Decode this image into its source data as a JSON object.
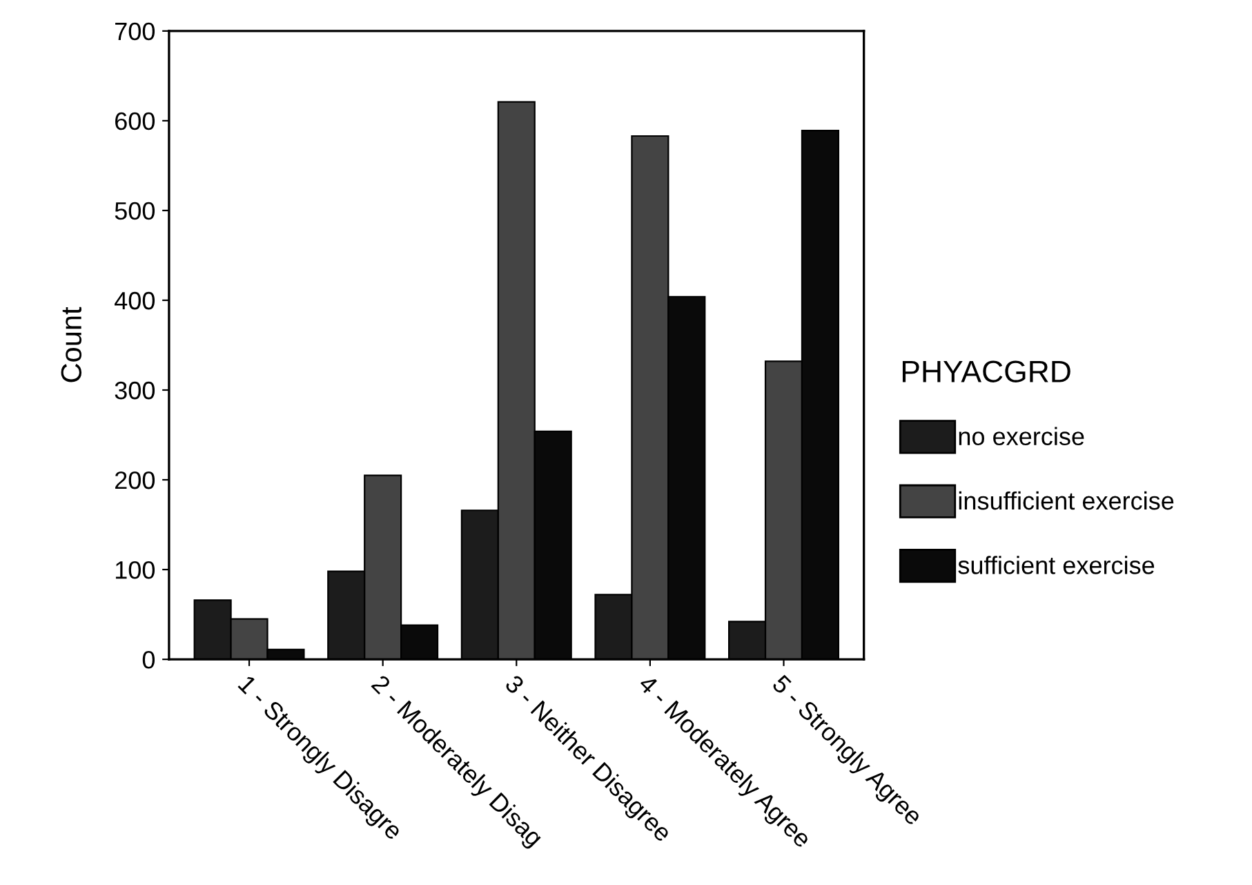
{
  "chart_data": {
    "type": "bar",
    "ylabel": "Count",
    "legend_title": "PHYACGRD",
    "categories": [
      "1 - Strongly Disagre",
      "2 - Moderately Disag",
      "3 - Neither Disagree",
      "4 - Moderately Agree",
      "5 - Strongly Agree"
    ],
    "series": [
      {
        "name": "no exercise",
        "color": "#1c1c1c",
        "values": [
          66,
          98,
          166,
          72,
          42
        ]
      },
      {
        "name": "insufficient exercise",
        "color": "#444444",
        "values": [
          45,
          205,
          621,
          583,
          332
        ]
      },
      {
        "name": "sufficient exercise",
        "color": "#0a0a0a",
        "values": [
          11,
          38,
          254,
          404,
          589
        ]
      }
    ],
    "ylim": [
      0,
      700
    ],
    "yticks": [
      0,
      100,
      200,
      300,
      400,
      500,
      600,
      700
    ],
    "grid": false,
    "legend": "right"
  }
}
